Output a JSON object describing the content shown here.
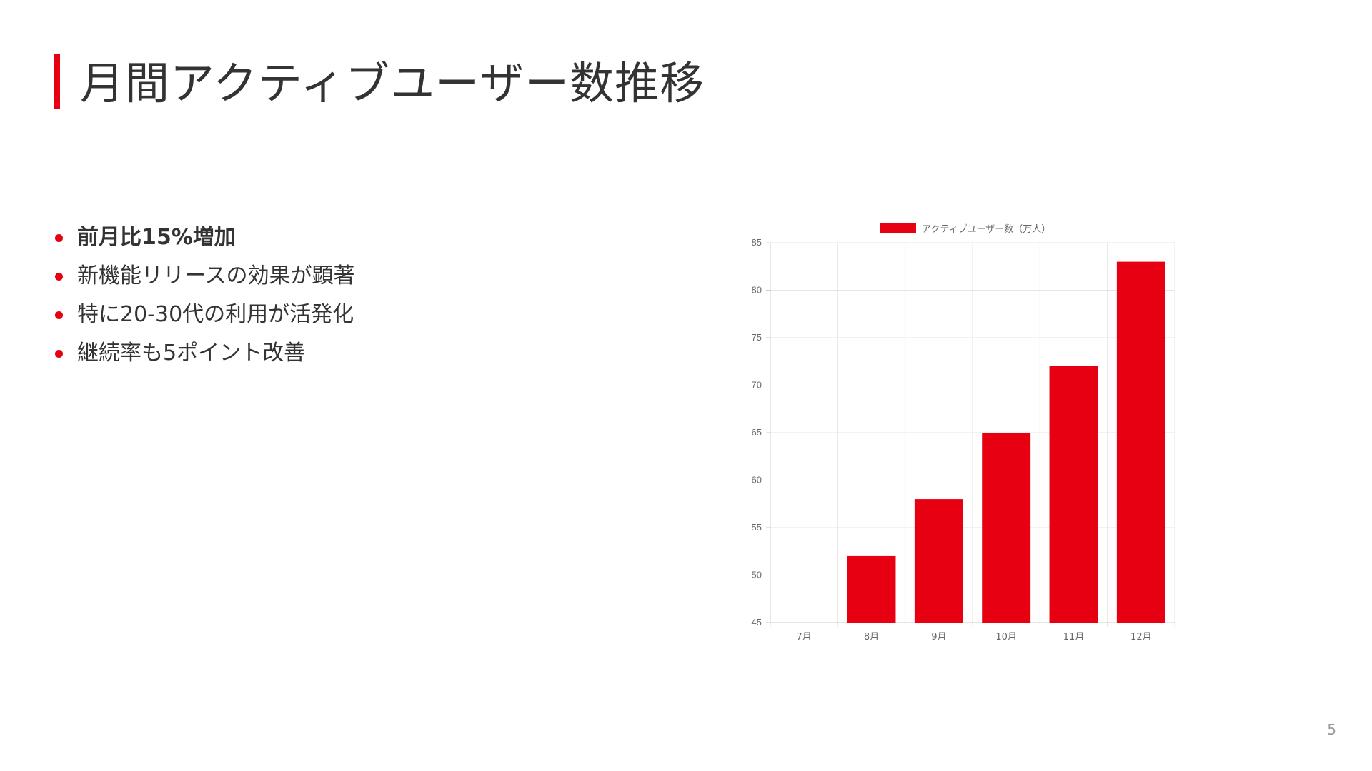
{
  "slide": {
    "title": "月間アクティブユーザー数推移",
    "page_number": "5",
    "accent_color": "#e60012"
  },
  "bullets": [
    {
      "text": "前月比15%増加",
      "bold": true
    },
    {
      "text": "新機能リリースの効果が顕著",
      "bold": false
    },
    {
      "text": "特に20-30代の利用が活発化",
      "bold": false
    },
    {
      "text": "継続率も5ポイント改善",
      "bold": false
    }
  ],
  "chart_data": {
    "type": "bar",
    "title": "",
    "xlabel": "",
    "ylabel": "",
    "categories": [
      "7月",
      "8月",
      "9月",
      "10月",
      "11月",
      "12月"
    ],
    "series": [
      {
        "name": "アクティブユーザー数（万人）",
        "color": "#e60012",
        "values": [
          45,
          52,
          58,
          65,
          72,
          83
        ]
      }
    ],
    "ylim": [
      45,
      85
    ],
    "yticks": [
      45,
      50,
      55,
      60,
      65,
      70,
      75,
      80,
      85
    ],
    "grid": true,
    "legend_position": "top"
  }
}
